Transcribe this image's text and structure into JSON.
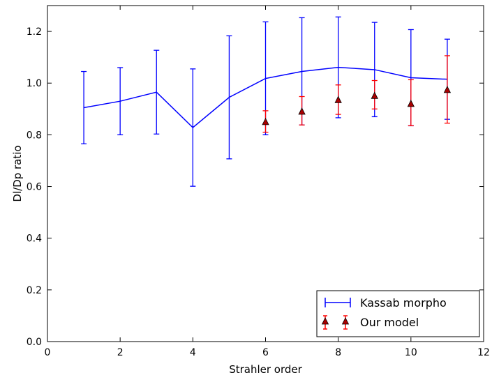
{
  "chart_data": {
    "type": "line",
    "title": "",
    "xlabel": "Strahler order",
    "ylabel": "Dl/Dp ratio",
    "xlim": [
      0,
      12
    ],
    "ylim": [
      0.0,
      1.3
    ],
    "x_ticks": [
      "0",
      "2",
      "4",
      "6",
      "8",
      "10",
      "12"
    ],
    "y_ticks": [
      "0.0",
      "0.2",
      "0.4",
      "0.6",
      "0.8",
      "1.0",
      "1.2"
    ],
    "grid": false,
    "legend_position": "bottom-right",
    "series": [
      {
        "name": "Kassab morpho",
        "color": "#0000ff",
        "marker": "none",
        "points": [
          {
            "x": 1,
            "y": 0.905,
            "lo": 0.765,
            "hi": 1.045
          },
          {
            "x": 2,
            "y": 0.93,
            "lo": 0.8,
            "hi": 1.06
          },
          {
            "x": 3,
            "y": 0.965,
            "lo": 0.803,
            "hi": 1.127
          },
          {
            "x": 4,
            "y": 0.828,
            "lo": 0.601,
            "hi": 1.055
          },
          {
            "x": 5,
            "y": 0.945,
            "lo": 0.707,
            "hi": 1.183
          },
          {
            "x": 6,
            "y": 1.018,
            "lo": 0.8,
            "hi": 1.237
          },
          {
            "x": 7,
            "y": 1.045,
            "lo": 0.838,
            "hi": 1.253
          },
          {
            "x": 8,
            "y": 1.061,
            "lo": 0.866,
            "hi": 1.256
          },
          {
            "x": 9,
            "y": 1.052,
            "lo": 0.87,
            "hi": 1.235
          },
          {
            "x": 10,
            "y": 1.021,
            "lo": 0.835,
            "hi": 1.207
          },
          {
            "x": 11,
            "y": 1.015,
            "lo": 0.86,
            "hi": 1.17
          }
        ]
      },
      {
        "name": "Our model",
        "color": "#ff0000",
        "marker_color": "#aa0000",
        "marker": "triangle",
        "points": [
          {
            "x": 6,
            "y": 0.85,
            "lo": 0.81,
            "hi": 0.893
          },
          {
            "x": 7,
            "y": 0.89,
            "lo": 0.838,
            "hi": 0.948
          },
          {
            "x": 8,
            "y": 0.935,
            "lo": 0.879,
            "hi": 0.993
          },
          {
            "x": 9,
            "y": 0.951,
            "lo": 0.9,
            "hi": 1.01
          },
          {
            "x": 10,
            "y": 0.92,
            "lo": 0.835,
            "hi": 1.013
          },
          {
            "x": 11,
            "y": 0.974,
            "lo": 0.845,
            "hi": 1.106
          }
        ]
      }
    ]
  }
}
